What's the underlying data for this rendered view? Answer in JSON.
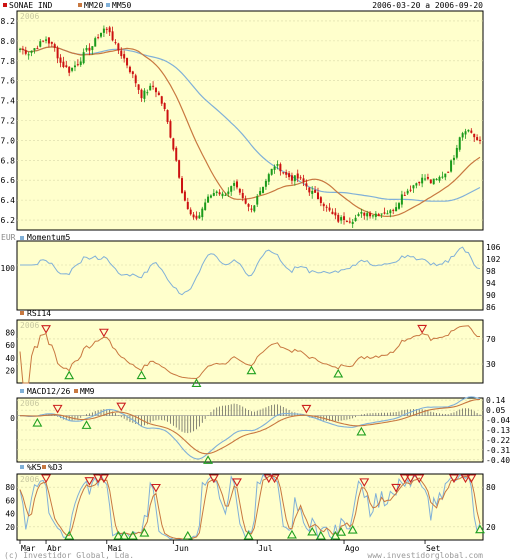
{
  "header": {
    "symbol": "SONAE IND",
    "ind1": "MM20",
    "ind2": "MM50",
    "range": "2006-03-20 a 2006-09-20"
  },
  "footer": {
    "left": "(c) Investidor Global, Lda.",
    "right": "www.investidorglobal.com"
  },
  "watermark": "2006",
  "colors": {
    "background": "#ffffcc",
    "grid": "#d8d8a8",
    "up": "#1a9a1a",
    "down": "#cc1111",
    "mm20": "#c87840",
    "mm50": "#80b0d8",
    "signal_up": "#20a020",
    "signal_down": "#cc2020"
  },
  "x_axis": {
    "months": [
      "Mar",
      "Abr",
      "Mai",
      "Jun",
      "Jul",
      "Ago",
      "Set"
    ]
  },
  "chart_data": [
    {
      "type": "candlestick",
      "panel": "price",
      "ylim": [
        6.1,
        8.3
      ],
      "y_ticks": [
        "8.2",
        "8.0",
        "7.8",
        "7.6",
        "7.4",
        "7.2",
        "7.0",
        "6.8",
        "6.6",
        "6.4",
        "6.2"
      ],
      "unit_label": "EUR",
      "legend": [
        "SONAE IND",
        "MM20",
        "MM50"
      ],
      "anchors": [
        [
          0,
          7.92
        ],
        [
          3,
          7.88
        ],
        [
          6,
          7.95
        ],
        [
          9,
          8.02
        ],
        [
          12,
          7.92
        ],
        [
          14,
          7.78
        ],
        [
          17,
          7.7
        ],
        [
          20,
          7.78
        ],
        [
          23,
          7.9
        ],
        [
          25,
          7.95
        ],
        [
          27,
          8.05
        ],
        [
          29,
          8.12
        ],
        [
          31,
          8.1
        ],
        [
          33,
          7.95
        ],
        [
          36,
          7.82
        ],
        [
          39,
          7.65
        ],
        [
          42,
          7.45
        ],
        [
          44,
          7.5
        ],
        [
          46,
          7.55
        ],
        [
          48,
          7.45
        ],
        [
          50,
          7.3
        ],
        [
          52,
          7.05
        ],
        [
          54,
          6.8
        ],
        [
          56,
          6.5
        ],
        [
          58,
          6.3
        ],
        [
          60,
          6.2
        ],
        [
          62,
          6.25
        ],
        [
          64,
          6.38
        ],
        [
          66,
          6.45
        ],
        [
          68,
          6.5
        ],
        [
          70,
          6.45
        ],
        [
          72,
          6.5
        ],
        [
          74,
          6.55
        ],
        [
          76,
          6.45
        ],
        [
          78,
          6.35
        ],
        [
          80,
          6.3
        ],
        [
          82,
          6.45
        ],
        [
          84,
          6.55
        ],
        [
          86,
          6.65
        ],
        [
          88,
          6.75
        ],
        [
          90,
          6.72
        ],
        [
          92,
          6.65
        ],
        [
          94,
          6.62
        ],
        [
          96,
          6.62
        ],
        [
          98,
          6.58
        ],
        [
          100,
          6.5
        ],
        [
          102,
          6.45
        ],
        [
          104,
          6.4
        ],
        [
          106,
          6.32
        ],
        [
          108,
          6.25
        ],
        [
          110,
          6.2
        ],
        [
          112,
          6.22
        ],
        [
          114,
          6.2
        ],
        [
          116,
          6.22
        ],
        [
          118,
          6.26
        ],
        [
          120,
          6.27
        ],
        [
          122,
          6.26
        ],
        [
          124,
          6.27
        ],
        [
          126,
          6.28
        ],
        [
          128,
          6.28
        ],
        [
          130,
          6.35
        ],
        [
          132,
          6.45
        ],
        [
          134,
          6.5
        ],
        [
          136,
          6.55
        ],
        [
          138,
          6.6
        ],
        [
          140,
          6.62
        ],
        [
          142,
          6.58
        ],
        [
          144,
          6.6
        ],
        [
          146,
          6.65
        ],
        [
          148,
          6.7
        ],
        [
          150,
          6.85
        ],
        [
          152,
          7.05
        ],
        [
          154,
          7.12
        ],
        [
          156,
          7.08
        ],
        [
          158,
          7.0
        ],
        [
          159,
          6.98
        ]
      ]
    },
    {
      "type": "line",
      "panel": "momentum",
      "title": "Momentum5",
      "ylim": [
        85,
        108
      ],
      "y_ticks": [
        "106",
        "102",
        "98",
        "94",
        "90",
        "86"
      ],
      "left_tick": "100"
    },
    {
      "type": "line",
      "panel": "rsi",
      "title": "RSI14",
      "ylim": [
        0,
        100
      ],
      "y_ticks": [
        "70",
        "30"
      ],
      "left_ticks": [
        "80",
        "60",
        "40",
        "20"
      ]
    },
    {
      "type": "line",
      "panel": "macd",
      "title": "MACD12/26",
      "title2": "MM9",
      "ylim": [
        -0.42,
        0.16
      ],
      "y_ticks": [
        "0.14",
        "0.05",
        "-0.04",
        "-0.13",
        "-0.22",
        "-0.31",
        "-0.40"
      ],
      "left_tick": "0"
    },
    {
      "type": "line",
      "panel": "stochastic",
      "title": "%K5",
      "title2": "%D3",
      "ylim": [
        0,
        100
      ],
      "y_ticks": [
        "80",
        "20"
      ],
      "left_ticks": [
        "80",
        "60",
        "40",
        "20"
      ]
    }
  ]
}
